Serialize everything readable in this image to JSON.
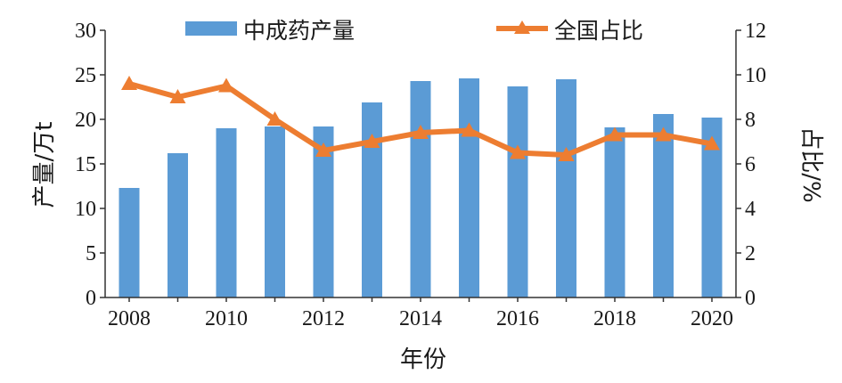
{
  "chart_data": {
    "type": "bar+line",
    "x": [
      2008,
      2009,
      2010,
      2011,
      2012,
      2013,
      2014,
      2015,
      2016,
      2017,
      2018,
      2019,
      2020
    ],
    "x_tick_labels": [
      "2008",
      "2010",
      "2012",
      "2014",
      "2016",
      "2018",
      "2020"
    ],
    "series": [
      {
        "name": "中成药产量",
        "type": "bar",
        "axis": "left",
        "color": "#5b9bd5",
        "values": [
          12.3,
          16.2,
          19.0,
          19.2,
          19.2,
          21.9,
          24.3,
          24.6,
          23.7,
          24.5,
          19.1,
          20.6,
          20.2
        ]
      },
      {
        "name": "全国占比",
        "type": "line",
        "axis": "right",
        "marker": "triangle",
        "color": "#ed7d31",
        "values": [
          9.6,
          9.0,
          9.5,
          8.0,
          6.6,
          7.0,
          7.4,
          7.5,
          6.5,
          6.4,
          7.3,
          7.3,
          6.9
        ]
      }
    ],
    "xlabel": "年份",
    "ylabel_left": "产量/万t",
    "ylabel_right": "占比/%",
    "ylim_left": [
      0,
      30
    ],
    "ylim_right": [
      0,
      12
    ],
    "yticks_left": [
      "0",
      "5",
      "10",
      "15",
      "20",
      "25",
      "30"
    ],
    "yticks_right": [
      "0",
      "2",
      "4",
      "6",
      "8",
      "10",
      "12"
    ],
    "legend_position": "top",
    "grid": false
  }
}
